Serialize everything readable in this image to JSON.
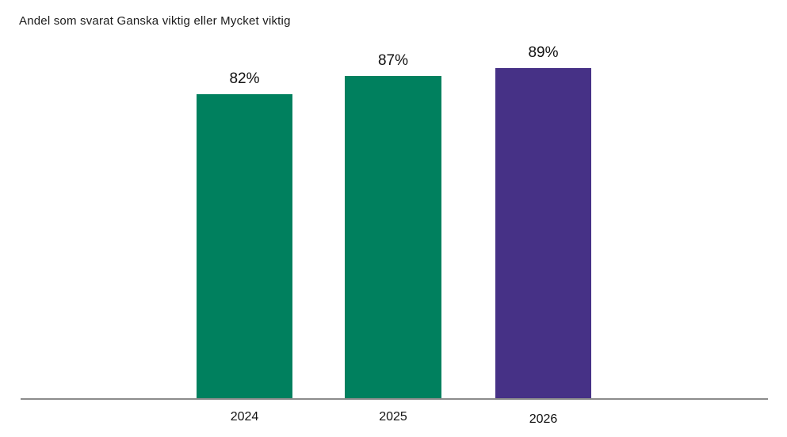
{
  "title": "Andel som svarat Ganska viktig eller Mycket viktig",
  "chart_data": {
    "type": "bar",
    "title": "Andel som svarat Ganska viktig eller Mycket viktig",
    "categories": [
      "2024",
      "2025",
      "2026"
    ],
    "values": [
      82,
      87,
      89
    ],
    "value_labels": [
      "82%",
      "87%",
      "89%"
    ],
    "xlabel": "",
    "ylabel": "",
    "ylim": [
      0,
      100
    ],
    "grid": false,
    "legend": "none",
    "bar_colors": [
      "#00805e",
      "#00805e",
      "#463186"
    ],
    "axis_line_color": "#8c8c8c",
    "text_color": "#1a1a1a",
    "background_color": "#ffffff"
  }
}
